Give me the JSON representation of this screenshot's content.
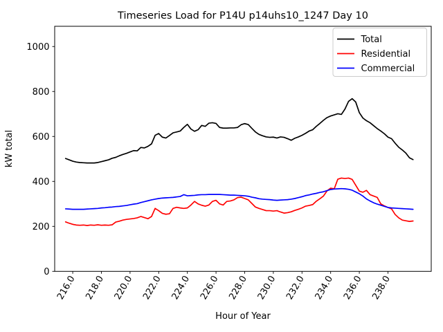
{
  "chart_data": {
    "type": "line",
    "title": "Timeseries Load for P14U p14uhs10_1247  Day 10",
    "xlabel": "Hour of Year",
    "ylabel": "kW total",
    "xlim": [
      214.74,
      241.02
    ],
    "ylim": [
      0,
      1090
    ],
    "grid": false,
    "legend_position": "upper right",
    "x_ticks": [
      216,
      218,
      220,
      222,
      224,
      226,
      228,
      230,
      232,
      234,
      236,
      238
    ],
    "x_tick_labels": [
      "216.0",
      "218.0",
      "220.0",
      "222.0",
      "224.0",
      "226.0",
      "228.0",
      "230.0",
      "232.0",
      "234.0",
      "236.0",
      "238.0"
    ],
    "y_ticks": [
      0,
      200,
      400,
      600,
      800,
      1000
    ],
    "y_tick_labels": [
      "0",
      "200",
      "400",
      "600",
      "800",
      "1000"
    ],
    "x_start": 215.5,
    "x_step": 0.25,
    "series": [
      {
        "name": "Total",
        "color": "#000000",
        "values": [
          502,
          496,
          490,
          486,
          484,
          483,
          482,
          482,
          482,
          484,
          488,
          492,
          496,
          503,
          507,
          514,
          520,
          525,
          531,
          537,
          536,
          551,
          549,
          556,
          567,
          605,
          613,
          597,
          593,
          604,
          616,
          620,
          624,
          640,
          654,
          633,
          623,
          630,
          649,
          645,
          659,
          661,
          658,
          640,
          637,
          637,
          638,
          638,
          640,
          652,
          657,
          653,
          636,
          620,
          609,
          603,
          598,
          596,
          597,
          593,
          598,
          596,
          590,
          583,
          592,
          598,
          605,
          614,
          624,
          630,
          645,
          658,
          672,
          684,
          691,
          696,
          701,
          698,
          722,
          756,
          768,
          753,
          706,
          682,
          670,
          661,
          648,
          635,
          624,
          612,
          597,
          590,
          570,
          552,
          540,
          526,
          505,
          497
        ]
      },
      {
        "name": "Residential",
        "color": "#ff0000",
        "values": [
          220,
          214,
          209,
          206,
          205,
          206,
          204,
          206,
          205,
          207,
          205,
          206,
          205,
          207,
          219,
          223,
          228,
          231,
          233,
          235,
          238,
          244,
          239,
          234,
          244,
          280,
          270,
          258,
          254,
          256,
          280,
          285,
          282,
          280,
          282,
          295,
          311,
          300,
          294,
          290,
          295,
          311,
          316,
          300,
          295,
          311,
          313,
          318,
          328,
          330,
          324,
          318,
          302,
          286,
          280,
          275,
          270,
          270,
          268,
          270,
          264,
          259,
          261,
          265,
          271,
          276,
          282,
          290,
          293,
          297,
          312,
          323,
          335,
          358,
          370,
          367,
          410,
          415,
          413,
          415,
          409,
          383,
          357,
          352,
          360,
          341,
          335,
          329,
          300,
          291,
          284,
          278,
          253,
          238,
          228,
          225,
          222,
          224
        ]
      },
      {
        "name": "Commercial",
        "color": "#0000ff",
        "values": [
          278,
          277,
          276,
          276,
          276,
          276,
          277,
          278,
          279,
          280,
          282,
          283,
          285,
          286,
          288,
          289,
          291,
          293,
          296,
          299,
          301,
          306,
          310,
          314,
          318,
          321,
          324,
          326,
          327,
          328,
          329,
          331,
          333,
          341,
          336,
          337,
          338,
          340,
          341,
          341,
          342,
          342,
          342,
          342,
          341,
          340,
          339,
          339,
          338,
          337,
          336,
          334,
          330,
          327,
          323,
          321,
          320,
          319,
          317,
          316,
          317,
          318,
          319,
          321,
          324,
          328,
          332,
          337,
          340,
          344,
          347,
          351,
          354,
          359,
          364,
          366,
          367,
          368,
          367,
          365,
          361,
          353,
          345,
          335,
          322,
          313,
          305,
          299,
          294,
          289,
          284,
          282,
          281,
          280,
          279,
          278,
          277,
          276
        ]
      }
    ]
  }
}
